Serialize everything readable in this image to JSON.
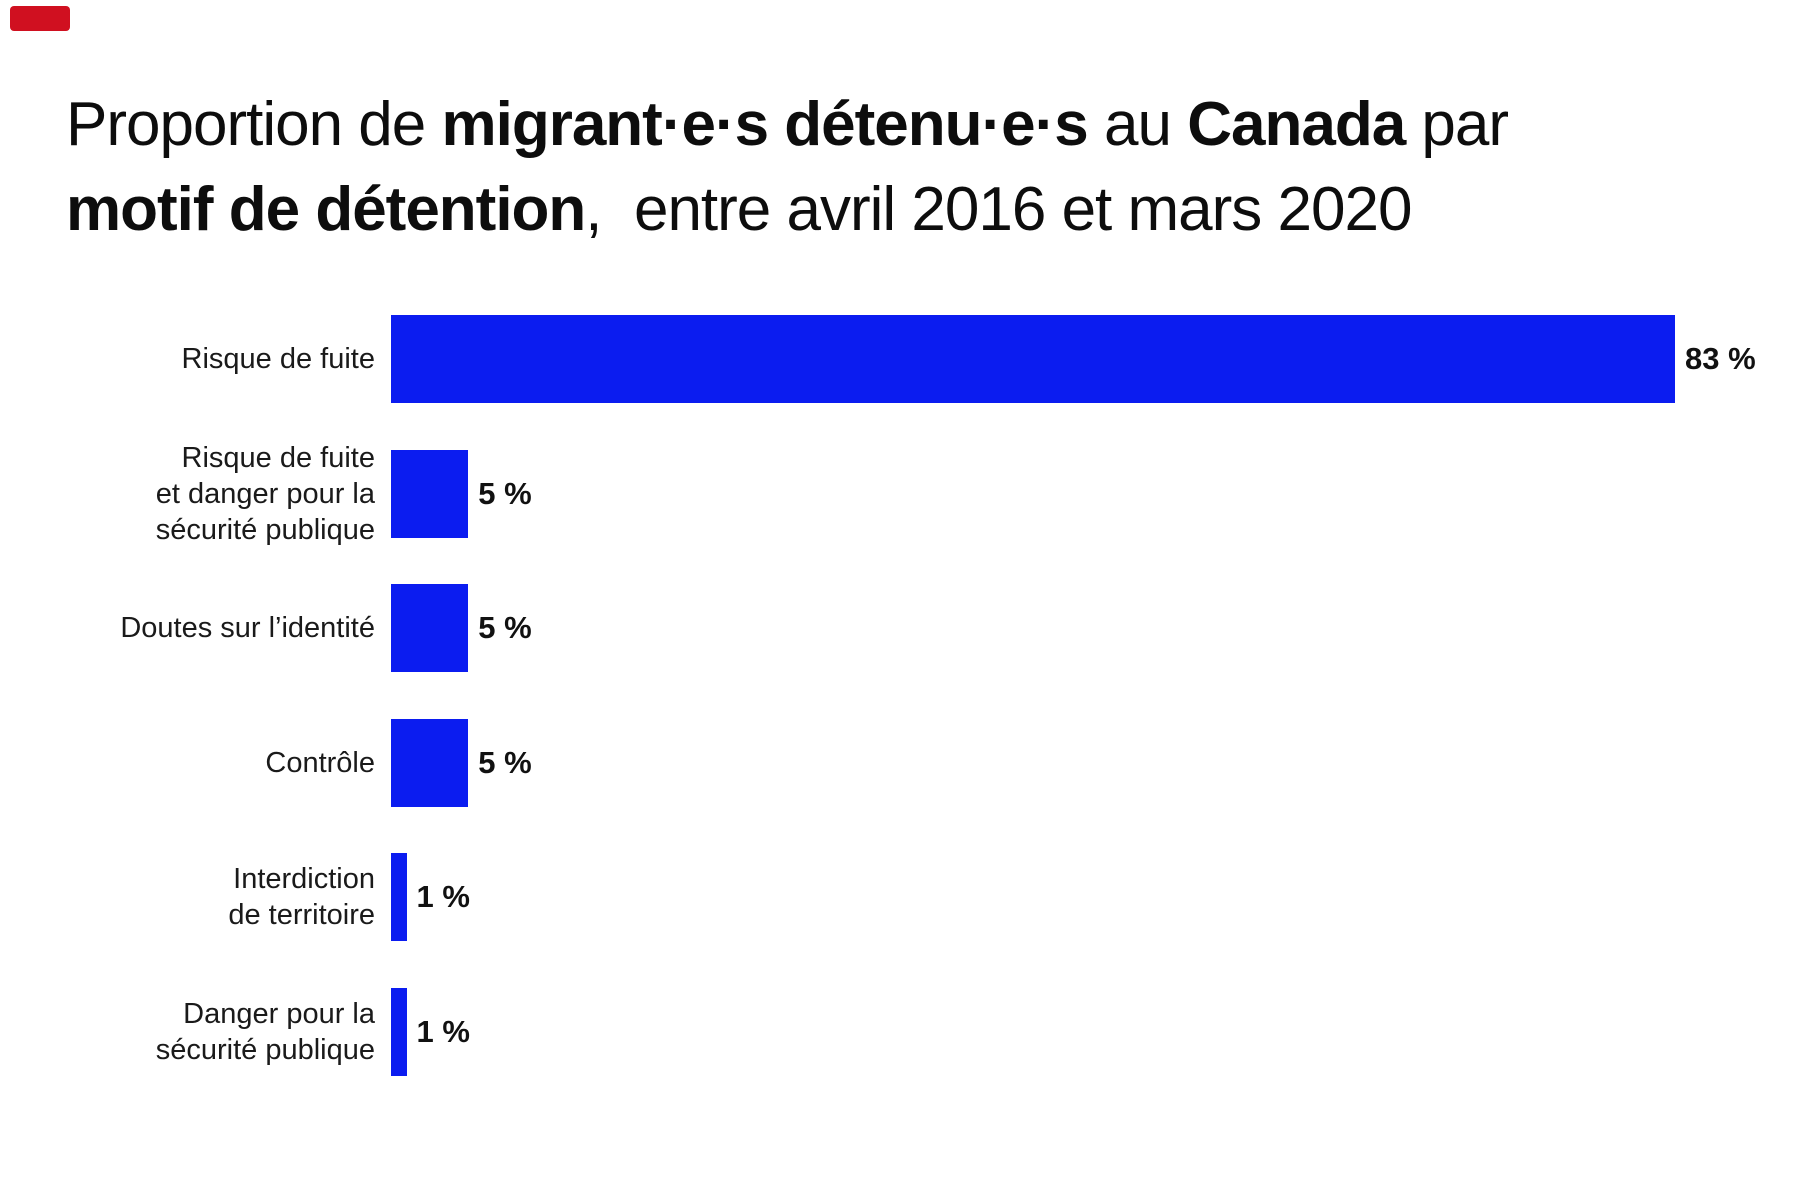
{
  "decorations": {
    "corner_mark": {
      "color": "#d01020"
    }
  },
  "title": {
    "full_text": "Proportion de migrant·e·s détenu·e·s au Canada par motif de détention,  entre avril 2016 et mars 2020",
    "lines": [
      {
        "segments": [
          {
            "text": "Proportion de ",
            "bold": false
          },
          {
            "text": "migrant·e·s détenu·e·s",
            "bold": true
          },
          {
            "text": " au ",
            "bold": false
          },
          {
            "text": "Canada",
            "bold": true
          },
          {
            "text": " par",
            "bold": false
          }
        ]
      },
      {
        "segments": [
          {
            "text": "motif de détention",
            "bold": true
          },
          {
            "text": ",  entre avril 2016 et mars 2020",
            "bold": false
          }
        ]
      }
    ]
  },
  "chart_data": {
    "type": "bar",
    "orientation": "horizontal",
    "title": "Proportion de migrant·e·s détenu·e·s au Canada par motif de détention, entre avril 2016 et mars 2020",
    "categories": [
      "Risque de fuite",
      "Risque de fuite et danger pour la sécurité publique",
      "Doutes sur l’identité",
      "Contrôle",
      "Interdiction de territoire",
      "Danger pour la sécurité publique"
    ],
    "label_lines": [
      [
        "Risque de fuite"
      ],
      [
        "Risque de fuite",
        "et danger pour la",
        "sécurité publique"
      ],
      [
        "Doutes sur l’identité"
      ],
      [
        "Contrôle"
      ],
      [
        "Interdiction",
        "de territoire"
      ],
      [
        "Danger pour la",
        "sécurité publique"
      ]
    ],
    "values": [
      83,
      5,
      5,
      5,
      1,
      1
    ],
    "value_labels": [
      "83 %",
      "5 %",
      "5 %",
      "5 %",
      "1 %",
      "1 %"
    ],
    "unit": "%",
    "xlim": [
      0,
      100
    ],
    "grid": false,
    "legend": false,
    "bar_color": "#0b1cf0",
    "text_color": "#1a1a1a"
  }
}
